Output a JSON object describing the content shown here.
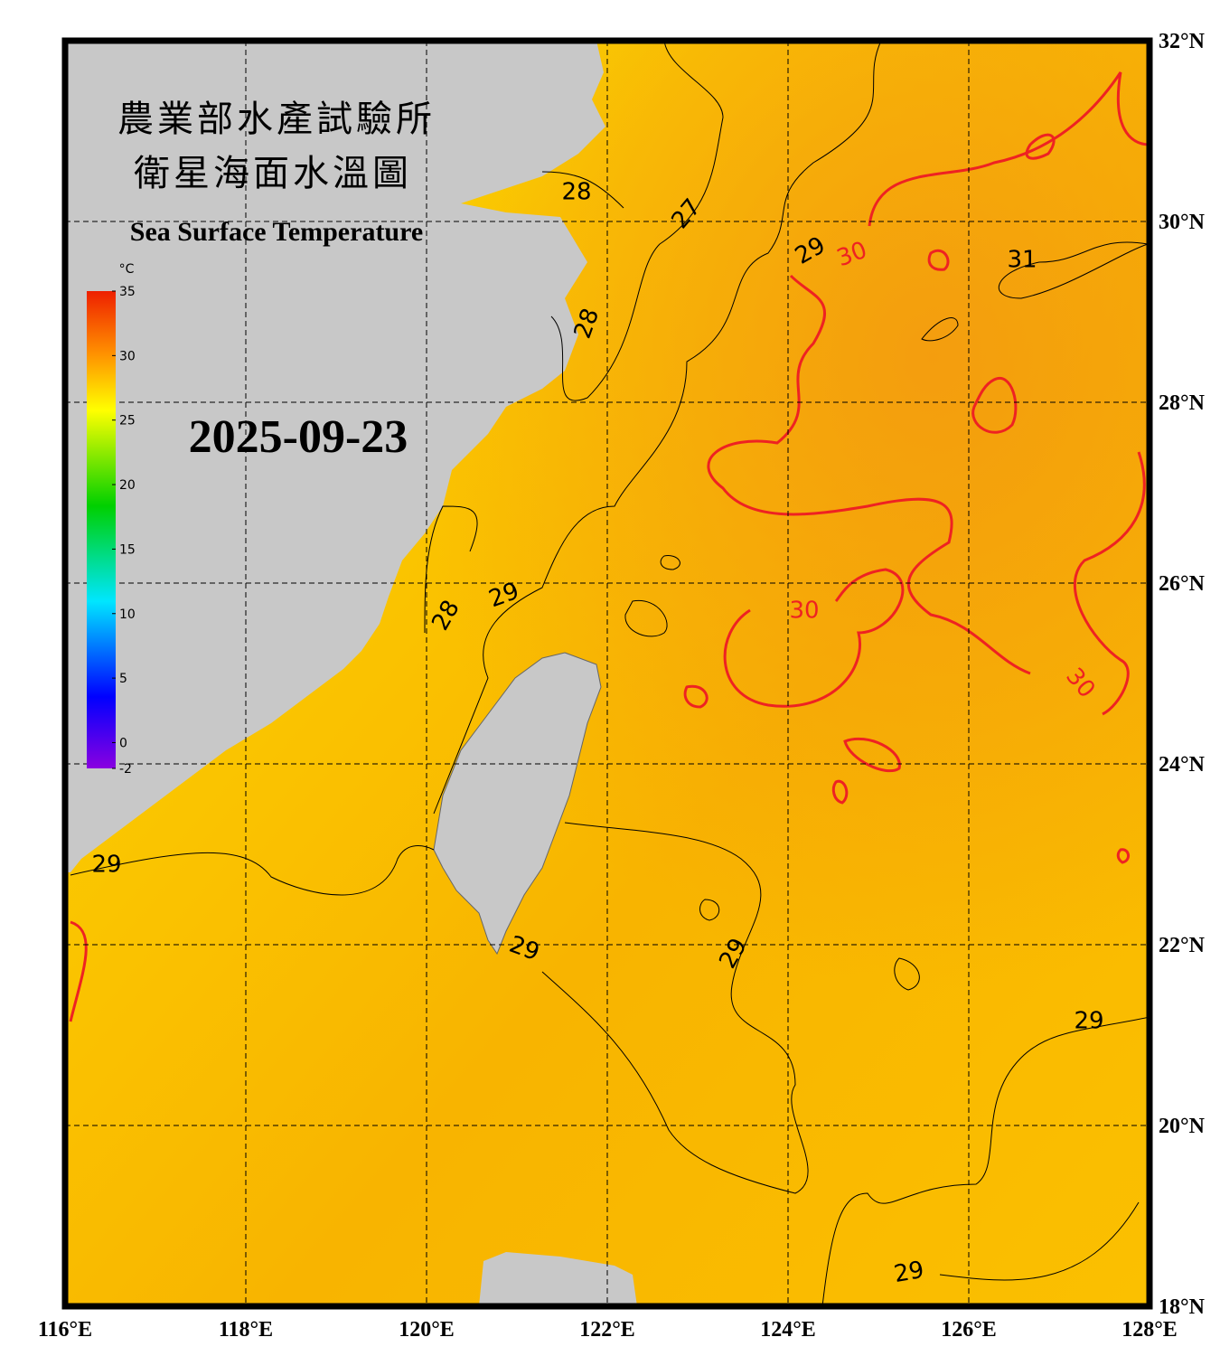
{
  "map": {
    "title_zh_1": "農業部水產試驗所",
    "title_zh_2": "衛星海面水溫圖",
    "title_en": "Sea Surface Temperature",
    "date": "2025-09-23",
    "lonlim": [
      116,
      128
    ],
    "latlim": [
      18,
      32
    ],
    "lon_ticks": [
      {
        "value": 116,
        "label": "116°E"
      },
      {
        "value": 118,
        "label": "118°E"
      },
      {
        "value": 120,
        "label": "120°E"
      },
      {
        "value": 122,
        "label": "122°E"
      },
      {
        "value": 124,
        "label": "124°E"
      },
      {
        "value": 126,
        "label": "126°E"
      },
      {
        "value": 128,
        "label": "128°E"
      }
    ],
    "lat_ticks": [
      {
        "value": 18,
        "label": "18°N"
      },
      {
        "value": 20,
        "label": "20°N"
      },
      {
        "value": 22,
        "label": "22°N"
      },
      {
        "value": 24,
        "label": "24°N"
      },
      {
        "value": 26,
        "label": "26°N"
      },
      {
        "value": 28,
        "label": "28°N"
      },
      {
        "value": 30,
        "label": "30°N"
      },
      {
        "value": 32,
        "label": "32°N"
      }
    ],
    "grid": true,
    "colorbar": {
      "unit": "°C",
      "range": [
        -2,
        35
      ],
      "ticks": [
        35,
        30,
        25,
        20,
        15,
        10,
        5,
        0,
        -2
      ]
    },
    "contour_labels": [
      {
        "value": 28,
        "color": "#000000"
      },
      {
        "value": 27,
        "color": "#000000"
      },
      {
        "value": 29,
        "color": "#000000"
      },
      {
        "value": 30,
        "color": "#ee2222"
      },
      {
        "value": 31,
        "color": "#000000"
      },
      {
        "value": 28,
        "color": "#000000"
      },
      {
        "value": 29,
        "color": "#000000"
      },
      {
        "value": 28,
        "color": "#000000"
      },
      {
        "value": 30,
        "color": "#ee2222"
      },
      {
        "value": 30,
        "color": "#ee2222"
      },
      {
        "value": 29,
        "color": "#000000"
      },
      {
        "value": 29,
        "color": "#000000"
      },
      {
        "value": 29,
        "color": "#000000"
      },
      {
        "value": 29,
        "color": "#000000"
      },
      {
        "value": 29,
        "color": "#000000"
      }
    ]
  }
}
